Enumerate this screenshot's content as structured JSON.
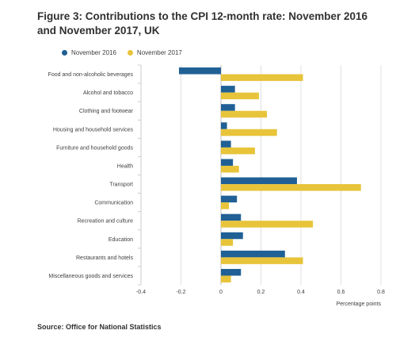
{
  "colors": {
    "nov2016": "#206095",
    "nov2017": "#e8c43a",
    "grid": "#e0e0e0",
    "axis": "#cccccc"
  },
  "chart_data": {
    "type": "bar",
    "orientation": "horizontal",
    "title": "Figure 3: Contributions to the CPI 12-month rate: November 2016 and November 2017, UK",
    "categories": [
      "Food and non-alcoholic beverages",
      "Alcohol and tobacco",
      "Clothing and footwear",
      "Housing and household services",
      "Furniture and household goods",
      "Health",
      "Transport",
      "Communication",
      "Recreation and culture",
      "Education",
      "Restaurants and hotels",
      "Miscellaneous goods and services"
    ],
    "series": [
      {
        "name": "November 2016",
        "color": "#206095",
        "values": [
          -0.21,
          0.07,
          0.07,
          0.03,
          0.05,
          0.06,
          0.38,
          0.08,
          0.1,
          0.11,
          0.32,
          0.1
        ]
      },
      {
        "name": "November 2017",
        "color": "#e8c43a",
        "values": [
          0.41,
          0.19,
          0.23,
          0.28,
          0.17,
          0.09,
          0.7,
          0.04,
          0.46,
          0.06,
          0.41,
          0.05
        ]
      }
    ],
    "xlim": [
      -0.4,
      0.8
    ],
    "xticks": [
      "-0.4",
      "-0.2",
      "0",
      "0.2",
      "0.4",
      "0.6",
      "0.8"
    ],
    "xlabel": "Percentage points",
    "ylabel": "",
    "grid": "vertical",
    "legend": "top-left"
  },
  "source": "Source: Office for National Statistics"
}
